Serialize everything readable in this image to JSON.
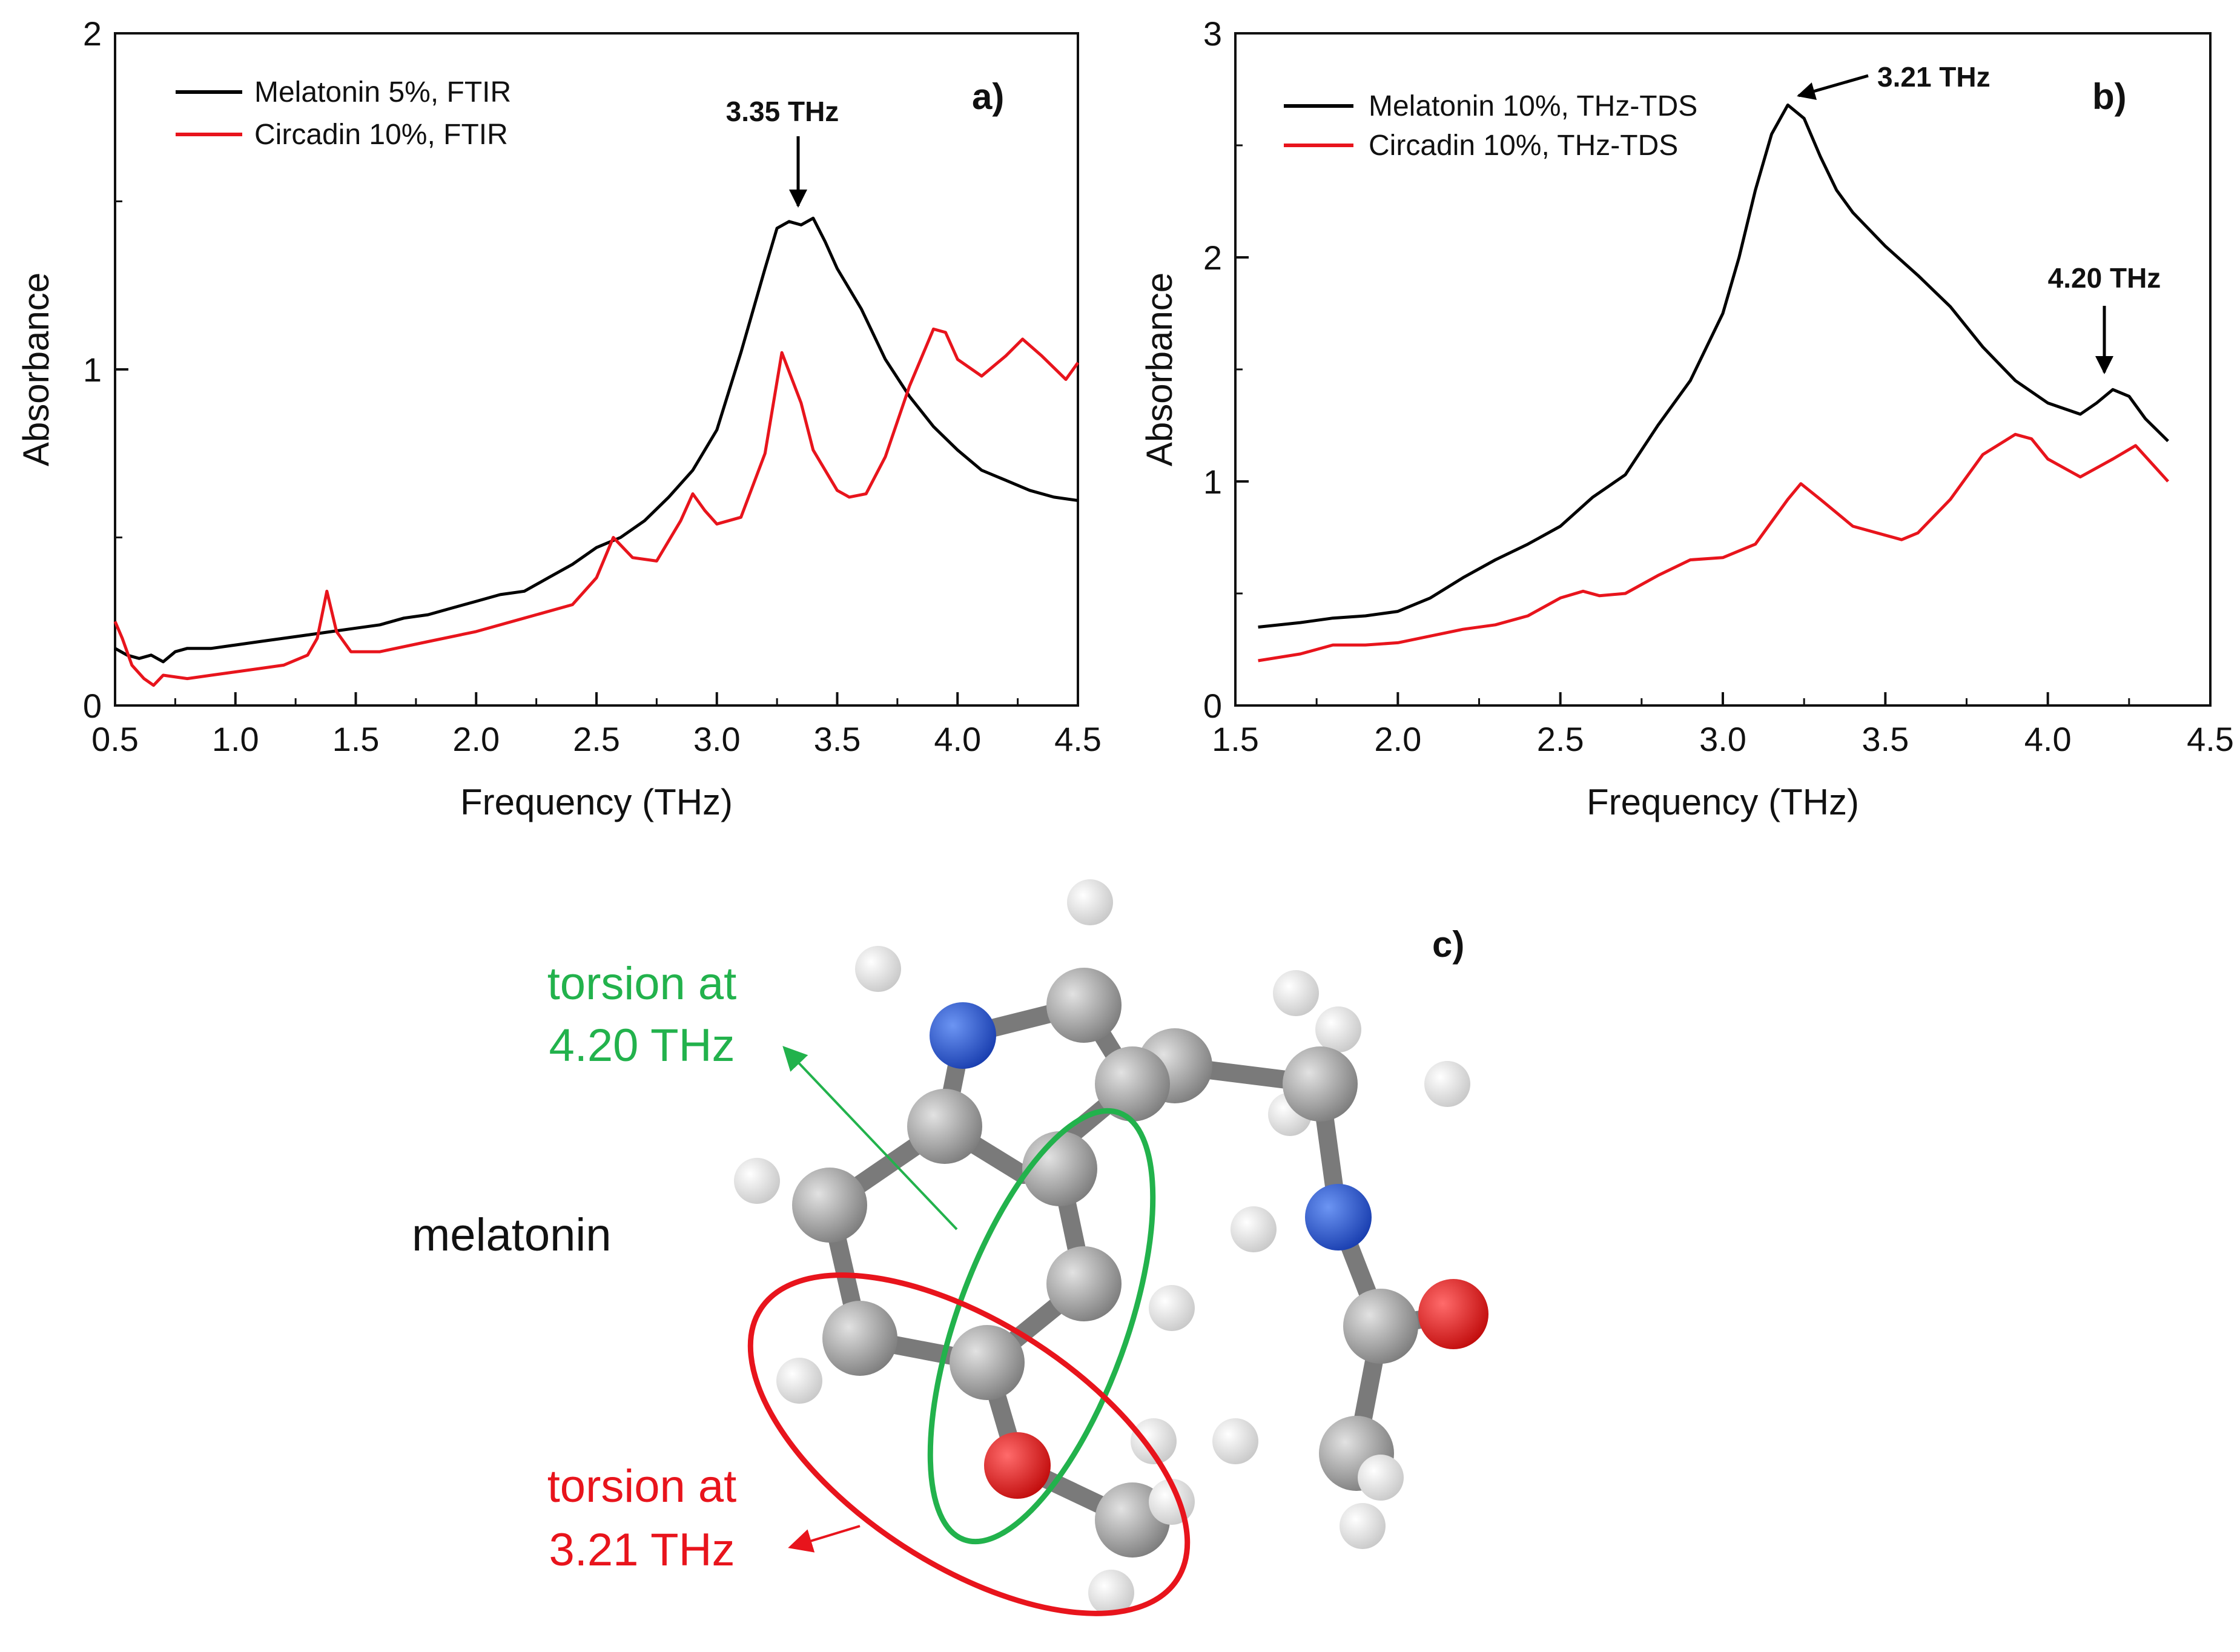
{
  "chart_data": [
    {
      "type": "line",
      "panel_label": "a)",
      "xlabel": "Frequency (THz)",
      "ylabel": "Absorbance",
      "xlim": [
        0.5,
        4.5
      ],
      "ylim": [
        0,
        2
      ],
      "xticks": [
        0.5,
        1.0,
        1.5,
        2.0,
        2.5,
        3.0,
        3.5,
        4.0,
        4.5
      ],
      "xtick_labels": [
        "0.5",
        "1.0",
        "1.5",
        "2.0",
        "2.5",
        "3.0",
        "3.5",
        "4.0",
        "4.5"
      ],
      "yticks": [
        0,
        1,
        2
      ],
      "ytick_labels": [
        "0",
        "1",
        "2"
      ],
      "legend_position": "top-left",
      "series": [
        {
          "name": "Melatonin 5%, FTIR",
          "color": "#000000",
          "x": [
            0.5,
            0.55,
            0.6,
            0.65,
            0.7,
            0.75,
            0.8,
            0.9,
            1.0,
            1.1,
            1.2,
            1.3,
            1.4,
            1.5,
            1.6,
            1.7,
            1.8,
            1.9,
            2.0,
            2.1,
            2.2,
            2.3,
            2.4,
            2.5,
            2.6,
            2.7,
            2.8,
            2.9,
            3.0,
            3.1,
            3.2,
            3.25,
            3.3,
            3.35,
            3.4,
            3.45,
            3.5,
            3.6,
            3.7,
            3.8,
            3.9,
            4.0,
            4.1,
            4.2,
            4.3,
            4.4,
            4.5
          ],
          "y": [
            0.17,
            0.15,
            0.14,
            0.15,
            0.13,
            0.16,
            0.17,
            0.17,
            0.18,
            0.19,
            0.2,
            0.21,
            0.22,
            0.23,
            0.24,
            0.26,
            0.27,
            0.29,
            0.31,
            0.33,
            0.34,
            0.38,
            0.42,
            0.47,
            0.5,
            0.55,
            0.62,
            0.7,
            0.82,
            1.05,
            1.3,
            1.42,
            1.44,
            1.43,
            1.45,
            1.38,
            1.3,
            1.18,
            1.03,
            0.92,
            0.83,
            0.76,
            0.7,
            0.67,
            0.64,
            0.62,
            0.61
          ]
        },
        {
          "name": "Circadin 10%, FTIR",
          "color": "#e8141c",
          "x": [
            0.5,
            0.53,
            0.57,
            0.62,
            0.66,
            0.7,
            0.8,
            0.9,
            1.0,
            1.1,
            1.2,
            1.3,
            1.34,
            1.38,
            1.42,
            1.48,
            1.6,
            1.8,
            2.0,
            2.2,
            2.4,
            2.5,
            2.57,
            2.65,
            2.75,
            2.85,
            2.9,
            2.95,
            3.0,
            3.1,
            3.2,
            3.27,
            3.35,
            3.4,
            3.5,
            3.55,
            3.62,
            3.7,
            3.8,
            3.9,
            3.95,
            4.0,
            4.1,
            4.2,
            4.27,
            4.35,
            4.45,
            4.5
          ],
          "y": [
            0.25,
            0.2,
            0.12,
            0.08,
            0.06,
            0.09,
            0.08,
            0.09,
            0.1,
            0.11,
            0.12,
            0.15,
            0.2,
            0.34,
            0.22,
            0.16,
            0.16,
            0.19,
            0.22,
            0.26,
            0.3,
            0.38,
            0.5,
            0.44,
            0.43,
            0.55,
            0.63,
            0.58,
            0.54,
            0.56,
            0.75,
            1.05,
            0.9,
            0.76,
            0.64,
            0.62,
            0.63,
            0.74,
            0.95,
            1.12,
            1.11,
            1.03,
            0.98,
            1.04,
            1.09,
            1.04,
            0.97,
            1.02
          ]
        }
      ],
      "annotations": [
        {
          "text": "3.35 THz",
          "x": 3.35,
          "y": 1.48,
          "arrow": "down"
        }
      ]
    },
    {
      "type": "line",
      "panel_label": "b)",
      "xlabel": "Frequency (THz)",
      "ylabel": "Absorbance",
      "xlim": [
        1.5,
        4.5
      ],
      "ylim": [
        0,
        3
      ],
      "xticks": [
        1.5,
        2.0,
        2.5,
        3.0,
        3.5,
        4.0,
        4.5
      ],
      "xtick_labels": [
        "1.5",
        "2.0",
        "2.5",
        "3.0",
        "3.5",
        "4.0",
        "4.5"
      ],
      "yticks": [
        0,
        1,
        2,
        3
      ],
      "ytick_labels": [
        "0",
        "1",
        "2",
        "3"
      ],
      "legend_position": "top-left",
      "series": [
        {
          "name": "Melatonin 10%, THz-TDS",
          "color": "#000000",
          "x": [
            1.57,
            1.7,
            1.8,
            1.9,
            2.0,
            2.1,
            2.2,
            2.3,
            2.4,
            2.5,
            2.6,
            2.65,
            2.7,
            2.8,
            2.9,
            3.0,
            3.05,
            3.1,
            3.15,
            3.2,
            3.25,
            3.3,
            3.35,
            3.4,
            3.5,
            3.6,
            3.7,
            3.8,
            3.9,
            4.0,
            4.1,
            4.15,
            4.2,
            4.25,
            4.3,
            4.37
          ],
          "y": [
            0.35,
            0.37,
            0.39,
            0.4,
            0.42,
            0.48,
            0.57,
            0.65,
            0.72,
            0.8,
            0.93,
            0.98,
            1.03,
            1.25,
            1.45,
            1.75,
            2.0,
            2.3,
            2.55,
            2.68,
            2.62,
            2.45,
            2.3,
            2.2,
            2.05,
            1.92,
            1.78,
            1.6,
            1.45,
            1.35,
            1.3,
            1.35,
            1.41,
            1.38,
            1.28,
            1.18
          ]
        },
        {
          "name": "Circadin 10%, THz-TDS",
          "color": "#e8141c",
          "x": [
            1.57,
            1.7,
            1.8,
            1.9,
            2.0,
            2.1,
            2.2,
            2.3,
            2.4,
            2.5,
            2.57,
            2.62,
            2.7,
            2.8,
            2.9,
            3.0,
            3.1,
            3.2,
            3.24,
            3.3,
            3.4,
            3.5,
            3.55,
            3.6,
            3.7,
            3.8,
            3.9,
            3.95,
            4.0,
            4.1,
            4.2,
            4.27,
            4.37
          ],
          "y": [
            0.2,
            0.23,
            0.27,
            0.27,
            0.28,
            0.31,
            0.34,
            0.36,
            0.4,
            0.48,
            0.51,
            0.49,
            0.5,
            0.58,
            0.65,
            0.66,
            0.72,
            0.92,
            0.99,
            0.92,
            0.8,
            0.76,
            0.74,
            0.77,
            0.92,
            1.12,
            1.21,
            1.19,
            1.1,
            1.02,
            1.1,
            1.16,
            1.0
          ]
        }
      ],
      "annotations": [
        {
          "text": "3.21 THz",
          "x": 3.21,
          "y": 2.68,
          "arrow": "left"
        },
        {
          "text": "4.20 THz",
          "x": 4.2,
          "y": 1.45,
          "arrow": "down"
        }
      ]
    }
  ],
  "panel_c": {
    "label": "c)",
    "molecule_name": "melatonin",
    "torsion_green": [
      "torsion at",
      "4.20 THz"
    ],
    "torsion_red": [
      "torsion at",
      "3.21 THz"
    ],
    "colors": {
      "green": "#22b24c",
      "red": "#e8141c",
      "carbon": "#9a9a9a",
      "hydrogen": "#ffffff",
      "nitrogen": "#2a5fd8",
      "oxygen": "#e51a1a"
    }
  }
}
